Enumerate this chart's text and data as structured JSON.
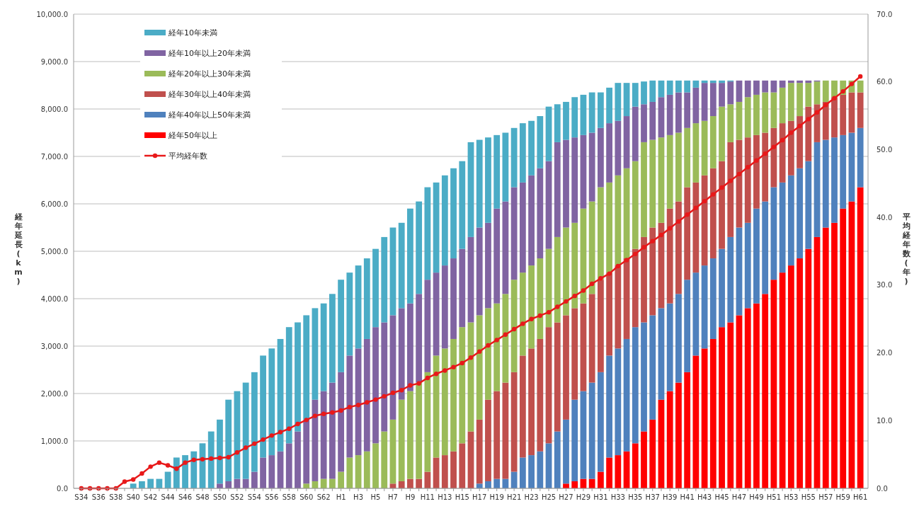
{
  "chart_data": {
    "type": "bar",
    "stacked": true,
    "ylabel": "経年延長(km)",
    "y2label": "平均経年数(年)",
    "categories": [
      "S34",
      null,
      "S36",
      null,
      "S38",
      null,
      "S40",
      null,
      "S42",
      null,
      "S44",
      null,
      "S46",
      null,
      "S48",
      null,
      "S50",
      null,
      "S52",
      null,
      "S54",
      null,
      "S56",
      null,
      "S58",
      null,
      "S60",
      null,
      "S62",
      null,
      "H1",
      null,
      "H3",
      null,
      "H5",
      null,
      "H7",
      null,
      "H9",
      null,
      "H11",
      null,
      "H13",
      null,
      "H15",
      null,
      "H17",
      null,
      "H19",
      null,
      "H21",
      null,
      "H23",
      null,
      "H25",
      null,
      "H27",
      null,
      "H29",
      null,
      "H31",
      null,
      "H33",
      null,
      "H35",
      null,
      "H37",
      null,
      "H39",
      null,
      "H41",
      null,
      "H43",
      null,
      "H45",
      null,
      "H47",
      null,
      "H49",
      null,
      "H51",
      null,
      "H53",
      null,
      "H55",
      null,
      "H57",
      null,
      "H59",
      null,
      "H61"
    ],
    "series": [
      {
        "name": "経年50年以上",
        "color": "#ff0000",
        "values": [
          0,
          0,
          0,
          0,
          0,
          0,
          0,
          0,
          0,
          0,
          0,
          0,
          0,
          0,
          0,
          0,
          0,
          0,
          0,
          0,
          0,
          0,
          0,
          0,
          0,
          0,
          0,
          0,
          0,
          0,
          0,
          0,
          0,
          0,
          0,
          0,
          0,
          0,
          0,
          0,
          0,
          0,
          0,
          0,
          0,
          0,
          0,
          0,
          0,
          0,
          0,
          0,
          0,
          0,
          0,
          0,
          100,
          150,
          200,
          200,
          350,
          650,
          700,
          780,
          950,
          1200,
          1450,
          1870,
          2050,
          2230,
          2450,
          2800,
          2950,
          3150,
          3400,
          3500,
          3650,
          3800,
          3900,
          4100,
          4400,
          4550,
          4700,
          4850,
          5050,
          5300,
          5500,
          5600,
          5900,
          6050,
          6350
        ]
      },
      {
        "name": "経年40年以上50年未満",
        "color": "#4f81bd",
        "values": [
          0,
          0,
          0,
          0,
          0,
          0,
          0,
          0,
          0,
          0,
          0,
          0,
          0,
          0,
          0,
          0,
          0,
          0,
          0,
          0,
          0,
          0,
          0,
          0,
          0,
          0,
          0,
          0,
          0,
          0,
          0,
          0,
          0,
          0,
          0,
          0,
          0,
          0,
          0,
          0,
          0,
          0,
          0,
          0,
          0,
          0,
          100,
          150,
          200,
          200,
          350,
          650,
          700,
          780,
          950,
          1200,
          1350,
          1720,
          1850,
          2030,
          2100,
          2150,
          2250,
          2370,
          2450,
          2300,
          2200,
          1930,
          1850,
          1870,
          1950,
          1750,
          1750,
          1700,
          1650,
          1800,
          1850,
          1800,
          2000,
          1950,
          1950,
          1900,
          1900,
          1900,
          1850,
          2000,
          1850,
          1800,
          1550,
          1450,
          1250
        ]
      },
      {
        "name": "経年30年以上40年未満",
        "color": "#c0504d",
        "values": [
          0,
          0,
          0,
          0,
          0,
          0,
          0,
          0,
          0,
          0,
          0,
          0,
          0,
          0,
          0,
          0,
          0,
          0,
          0,
          0,
          0,
          0,
          0,
          0,
          0,
          0,
          0,
          0,
          0,
          0,
          0,
          0,
          0,
          0,
          0,
          0,
          100,
          150,
          200,
          200,
          350,
          650,
          700,
          780,
          950,
          1200,
          1350,
          1720,
          1850,
          2030,
          2100,
          2150,
          2250,
          2370,
          2450,
          2300,
          2200,
          1930,
          1850,
          1870,
          1950,
          1750,
          1750,
          1700,
          1650,
          1800,
          1850,
          1800,
          2000,
          1950,
          1950,
          1900,
          1900,
          1900,
          1850,
          2000,
          1850,
          1800,
          1550,
          1450,
          1250,
          1250,
          1150,
          1100,
          1150,
          800,
          800,
          850,
          850,
          850,
          750
        ]
      },
      {
        "name": "経年20年以上30年未満",
        "color": "#9bbb59",
        "values": [
          0,
          0,
          0,
          0,
          0,
          0,
          0,
          0,
          0,
          0,
          0,
          0,
          0,
          0,
          0,
          0,
          0,
          0,
          0,
          0,
          0,
          0,
          0,
          0,
          0,
          0,
          100,
          150,
          200,
          200,
          350,
          650,
          700,
          780,
          950,
          1200,
          1350,
          1720,
          1850,
          2030,
          2100,
          2150,
          2250,
          2370,
          2450,
          2300,
          2200,
          1930,
          1850,
          1870,
          1950,
          1750,
          1750,
          1700,
          1650,
          1800,
          1850,
          1800,
          2000,
          1950,
          1950,
          1900,
          1900,
          1900,
          1850,
          2000,
          1850,
          1800,
          1550,
          1450,
          1250,
          1250,
          1150,
          1100,
          1150,
          800,
          800,
          850,
          850,
          850,
          750,
          750,
          800,
          700,
          500,
          480,
          450,
          350,
          300,
          250,
          250
        ]
      },
      {
        "name": "経年10年以上20年未満",
        "color": "#8064a2",
        "values": [
          0,
          0,
          0,
          0,
          0,
          0,
          0,
          0,
          0,
          0,
          0,
          0,
          0,
          0,
          0,
          0,
          100,
          150,
          200,
          200,
          350,
          650,
          700,
          780,
          950,
          1200,
          1350,
          1720,
          1850,
          2030,
          2100,
          2150,
          2250,
          2370,
          2450,
          2300,
          2200,
          1930,
          1850,
          1870,
          1950,
          1750,
          1750,
          1700,
          1650,
          1800,
          1850,
          1800,
          2000,
          1950,
          1950,
          1900,
          1900,
          1900,
          1850,
          2000,
          1850,
          1800,
          1550,
          1450,
          1250,
          1250,
          1150,
          1100,
          1150,
          800,
          800,
          850,
          850,
          850,
          750,
          750,
          800,
          700,
          500,
          480,
          450,
          350,
          300,
          250,
          250,
          150,
          50,
          50,
          50,
          20,
          0,
          0,
          0,
          0,
          0
        ]
      },
      {
        "name": "経年10年未満",
        "color": "#4bacc6",
        "values": [
          0,
          0,
          0,
          0,
          0,
          0,
          100,
          150,
          200,
          200,
          350,
          650,
          700,
          780,
          950,
          1200,
          1350,
          1720,
          1850,
          2030,
          2100,
          2150,
          2250,
          2370,
          2450,
          2300,
          2200,
          1930,
          1850,
          1870,
          1950,
          1750,
          1750,
          1700,
          1650,
          1800,
          1850,
          1800,
          2000,
          1950,
          1950,
          1900,
          1900,
          1900,
          1850,
          2000,
          1850,
          1800,
          1550,
          1450,
          1250,
          1250,
          1150,
          1100,
          1150,
          800,
          800,
          850,
          850,
          850,
          750,
          750,
          800,
          700,
          500,
          480,
          450,
          350,
          300,
          250,
          250,
          150,
          50,
          50,
          50,
          20,
          0,
          0,
          0,
          0,
          0,
          0,
          0,
          0,
          0,
          0,
          0,
          0,
          0,
          0,
          0
        ]
      },
      {
        "name": "平均経年数",
        "type": "line",
        "axis": "y2",
        "color": "#e8191a",
        "marker": "circle",
        "values": [
          0,
          0,
          0,
          0,
          0,
          1.0,
          1.3,
          2.2,
          3.2,
          3.8,
          3.4,
          2.9,
          3.8,
          4.2,
          4.3,
          4.4,
          4.5,
          4.6,
          5.3,
          6.0,
          6.6,
          7.2,
          7.8,
          8.3,
          8.8,
          9.5,
          10.1,
          10.7,
          11.0,
          11.2,
          11.5,
          12.0,
          12.3,
          12.7,
          13.1,
          13.6,
          14.1,
          14.5,
          15.2,
          15.5,
          16.3,
          16.9,
          17.4,
          17.9,
          18.5,
          19.3,
          20.2,
          21.1,
          21.9,
          22.7,
          23.5,
          24.3,
          25.0,
          25.5,
          26.0,
          26.8,
          27.6,
          28.4,
          29.2,
          30.2,
          31.0,
          31.7,
          32.8,
          33.7,
          34.6,
          35.6,
          36.5,
          37.4,
          38.4,
          39.4,
          40.4,
          41.4,
          42.4,
          43.4,
          44.4,
          45.4,
          46.4,
          47.4,
          48.4,
          49.4,
          50.4,
          51.4,
          52.5,
          53.5,
          54.5,
          55.5,
          56.6,
          57.6,
          58.6,
          59.7,
          60.8
        ]
      }
    ],
    "ylim": [
      0,
      10000
    ],
    "yticks": [
      {
        "value": 0,
        "label": "0.0"
      },
      {
        "value": 1000,
        "label": "1,000.0"
      },
      {
        "value": 2000,
        "label": "2,000.0"
      },
      {
        "value": 3000,
        "label": "3,000.0"
      },
      {
        "value": 4000,
        "label": "4,000.0"
      },
      {
        "value": 5000,
        "label": "5,000.0"
      },
      {
        "value": 6000,
        "label": "6,000.0"
      },
      {
        "value": 7000,
        "label": "7,000.0"
      },
      {
        "value": 8000,
        "label": "8,000.0"
      },
      {
        "value": 9000,
        "label": "9,000.0"
      },
      {
        "value": 10000,
        "label": "10,000.0"
      }
    ],
    "y2lim": [
      0,
      70
    ],
    "y2ticks": [
      {
        "value": 0,
        "label": "0.0"
      },
      {
        "value": 10,
        "label": "10.0"
      },
      {
        "value": 20,
        "label": "20.0"
      },
      {
        "value": 30,
        "label": "30.0"
      },
      {
        "value": 40,
        "label": "40.0"
      },
      {
        "value": 50,
        "label": "50.0"
      },
      {
        "value": 60,
        "label": "60.0"
      },
      {
        "value": 70,
        "label": "70.0"
      }
    ],
    "grid": "y",
    "legend": "top left"
  }
}
